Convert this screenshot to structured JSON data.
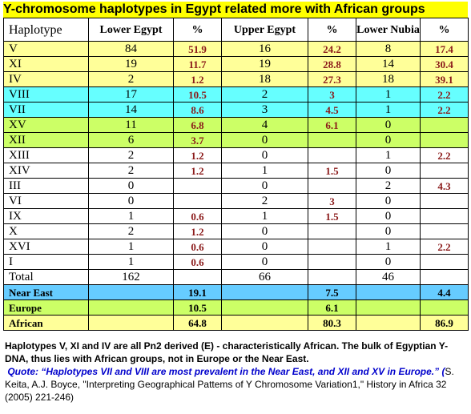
{
  "title": "Y-chromosome haplotypes in Egypt related more with African groups",
  "colors": {
    "title_bg": "#ffff00",
    "yellow": "#ffff99",
    "cyan": "#66ffff",
    "green": "#ccff66",
    "near_east": "#66ccff",
    "percent_text": "#8b1a1a",
    "quote": "#0000cc"
  },
  "table": {
    "headers": [
      "Haplotype",
      "Lower Egypt",
      "%",
      "Upper Egypt",
      "%",
      "Lower Nubia",
      "%"
    ],
    "rows": [
      {
        "h": "V",
        "le": "84",
        "lep": "51.9",
        "ue": "16",
        "uep": "24.2",
        "ln": "8",
        "lnp": "17.4",
        "bg": "yellow"
      },
      {
        "h": "XI",
        "le": "19",
        "lep": "11.7",
        "ue": "19",
        "uep": "28.8",
        "ln": "14",
        "lnp": "30.4",
        "bg": "yellow"
      },
      {
        "h": "IV",
        "le": "2",
        "lep": "1.2",
        "ue": "18",
        "uep": "27.3",
        "ln": "18",
        "lnp": "39.1",
        "bg": "yellow"
      },
      {
        "h": "VIII",
        "le": "17",
        "lep": "10.5",
        "ue": "2",
        "uep": "3",
        "ln": "1",
        "lnp": "2.2",
        "bg": "cyan"
      },
      {
        "h": "VII",
        "le": "14",
        "lep": "8.6",
        "ue": "3",
        "uep": "4.5",
        "ln": "1",
        "lnp": "2.2",
        "bg": "cyan"
      },
      {
        "h": "XV",
        "le": "11",
        "lep": "6.8",
        "ue": "4",
        "uep": "6.1",
        "ln": "0",
        "lnp": "",
        "bg": "green"
      },
      {
        "h": "XII",
        "le": "6",
        "lep": "3.7",
        "ue": "0",
        "uep": "",
        "ln": "0",
        "lnp": "",
        "bg": "green"
      },
      {
        "h": "XIII",
        "le": "2",
        "lep": "1.2",
        "ue": "0",
        "uep": "",
        "ln": "1",
        "lnp": "2.2",
        "bg": "white"
      },
      {
        "h": "XIV",
        "le": "2",
        "lep": "1.2",
        "ue": "1",
        "uep": "1.5",
        "ln": "0",
        "lnp": "",
        "bg": "white"
      },
      {
        "h": "III",
        "le": "0",
        "lep": "",
        "ue": "0",
        "uep": "",
        "ln": "2",
        "lnp": "4.3",
        "bg": "white"
      },
      {
        "h": "VI",
        "le": "0",
        "lep": "",
        "ue": "2",
        "uep": "3",
        "ln": "0",
        "lnp": "",
        "bg": "white"
      },
      {
        "h": "IX",
        "le": "1",
        "lep": "0.6",
        "ue": "1",
        "uep": "1.5",
        "ln": "0",
        "lnp": "",
        "bg": "white"
      },
      {
        "h": "X",
        "le": "2",
        "lep": "1.2",
        "ue": "0",
        "uep": "",
        "ln": "0",
        "lnp": "",
        "bg": "white"
      },
      {
        "h": "XVI",
        "le": "1",
        "lep": "0.6",
        "ue": "0",
        "uep": "",
        "ln": "1",
        "lnp": "2.2",
        "bg": "white"
      },
      {
        "h": "I",
        "le": "1",
        "lep": "0.6",
        "ue": "0",
        "uep": "",
        "ln": "0",
        "lnp": "",
        "bg": "white"
      },
      {
        "h": "Total",
        "le": "162",
        "lep": "",
        "ue": "66",
        "uep": "",
        "ln": "46",
        "lnp": "",
        "bg": "white"
      }
    ],
    "summary": [
      {
        "label": "Near East",
        "lep": "19.1",
        "uep": "7.5",
        "lnp": "4.4",
        "bg": "ne"
      },
      {
        "label": "Europe",
        "lep": "10.5",
        "uep": "6.1",
        "lnp": "",
        "bg": "green"
      },
      {
        "label": "African",
        "lep": "64.8",
        "uep": "80.3",
        "lnp": "86.9",
        "bg": "yellow"
      }
    ]
  },
  "note": {
    "bold_text": "Haplotypes V, XI and IV are all Pn2 derived (E) - characteristically African. The bulk of Egyptian Y-DNA, thus lies with African groups, not in Europe or the Near East.",
    "quote": "Quote: “Haplotypes VII and VIII are most prevalent in the Near East, and XII and XV in Europe.” (",
    "citation": "S. Keita, A.J. Boyce, \"Interpreting Geographical Pattems of Y Chromosome Variation1,\" History in Africa 32 (2005) 221-246)"
  }
}
